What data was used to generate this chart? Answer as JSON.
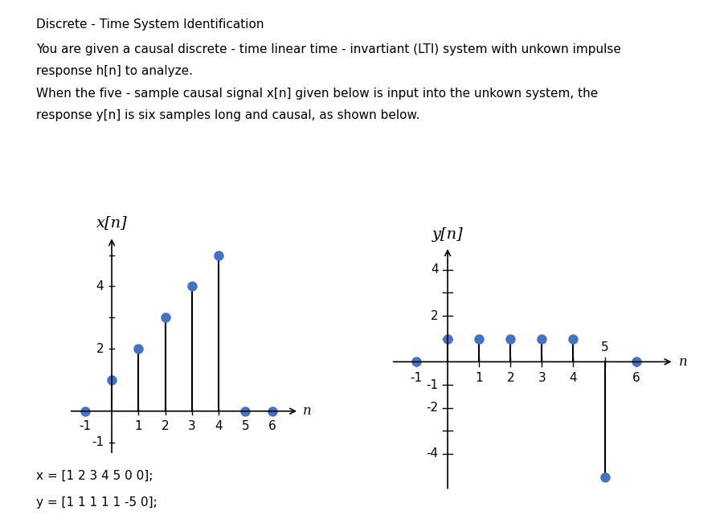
{
  "title_line1": "Discrete - Time System Identification",
  "para1": "You are given a causal discrete - time linear time - invartiant (LTI) system with unkown impulse",
  "para2": "response h[n] to analyze.",
  "para3": "When the five - sample causal signal x[n] given below is input into the unkown system, the",
  "para4": "response y[n] is six samples long and causal, as shown below.",
  "x_label": "x[n]",
  "y_label": "y[n]",
  "n_label": "n",
  "x_indices": [
    -1,
    0,
    1,
    2,
    3,
    4,
    5,
    6
  ],
  "x_values": [
    0,
    1,
    2,
    3,
    4,
    5,
    0,
    0
  ],
  "y_indices": [
    -1,
    0,
    1,
    2,
    3,
    4,
    5,
    6
  ],
  "y_values": [
    0,
    1,
    1,
    1,
    1,
    1,
    -5,
    0
  ],
  "code_line1": "x = [1 2 3 4 5 0 0];",
  "code_line2": "y = [1 1 1 1 1 -5 0];",
  "stem_color": "#4472C4",
  "line_color": "#000000",
  "text_color": "#000000",
  "bg_color": "#FFFFFF",
  "marker_size": 9,
  "linewidth": 1.5
}
